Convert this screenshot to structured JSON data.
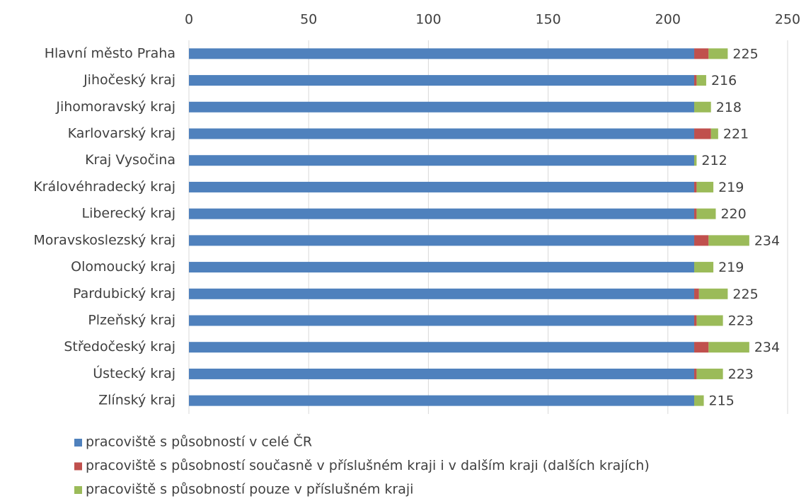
{
  "chart_data": {
    "type": "stacked-bar-horizontal",
    "categories": [
      "Hlavní město Praha",
      "Jihočeský kraj",
      "Jihomoravský kraj",
      "Karlovarský kraj",
      "Kraj Vysočina",
      "Královéhradecký kraj",
      "Liberecký kraj",
      "Moravskoslezský kraj",
      "Olomoucký kraj",
      "Pardubický kraj",
      "Plzeňský kraj",
      "Středočeský kraj",
      "Ústecký kraj",
      "Zlínský kraj"
    ],
    "series": [
      {
        "name": "pracoviště s působností v celé ČR",
        "color": "#4f81bd",
        "values": [
          211,
          211,
          211,
          211,
          211,
          211,
          211,
          211,
          211,
          211,
          211,
          211,
          211,
          211
        ]
      },
      {
        "name": "pracoviště s působností současně v příslušném kraji i v dalším kraji (dalších krajích)",
        "color": "#c0504d",
        "values": [
          6,
          1,
          0,
          7,
          0,
          1,
          1,
          6,
          0,
          2,
          1,
          6,
          1,
          0
        ]
      },
      {
        "name": "pracoviště s působností pouze v příslušném kraji",
        "color": "#9bbb59",
        "values": [
          8,
          4,
          7,
          3,
          1,
          7,
          8,
          17,
          8,
          12,
          11,
          17,
          11,
          4
        ]
      }
    ],
    "totals": [
      225,
      216,
      218,
      221,
      212,
      219,
      220,
      234,
      219,
      225,
      223,
      234,
      223,
      215
    ],
    "xlim": [
      0,
      250
    ],
    "xticks": [
      0,
      50,
      100,
      150,
      200,
      250
    ],
    "grid": true,
    "legend": "bottom"
  }
}
